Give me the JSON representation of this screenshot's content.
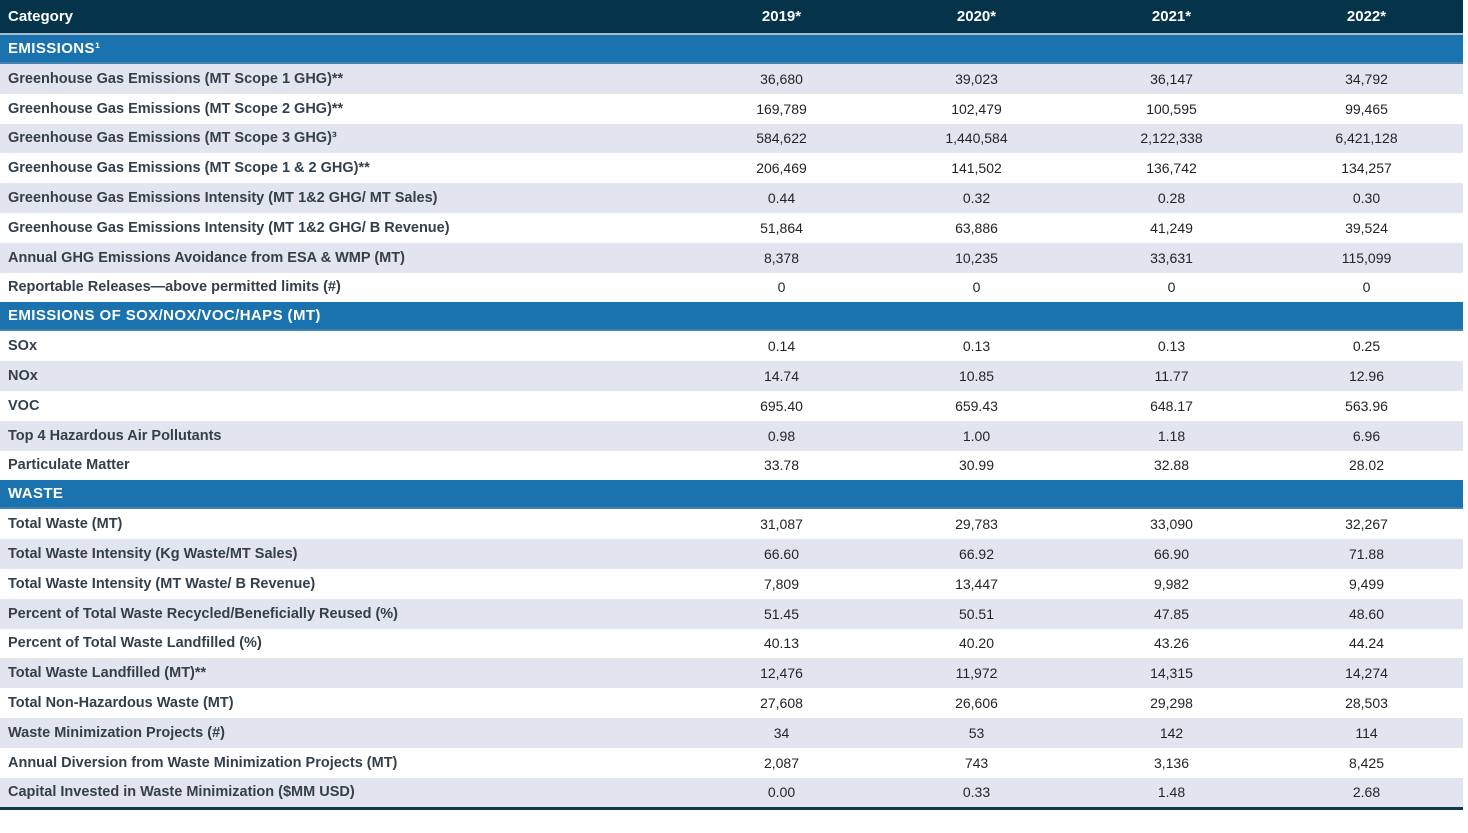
{
  "colors": {
    "header_bg": "#05344a",
    "section_bg": "#1a73ae",
    "stripe_bg": "#e2e5ef",
    "header_divider": "#aabccb",
    "section_edge": "#4483ad",
    "bottom_border": "#0c3b51",
    "label_color": "#333f4a",
    "value_color": "#212428"
  },
  "table": {
    "columns": [
      "Category",
      "2019*",
      "2020*",
      "2021*",
      "2022*"
    ],
    "sections": [
      {
        "title": "EMISSIONS¹",
        "rows": [
          {
            "label": "Greenhouse Gas Emissions (MT Scope 1 GHG)**",
            "values": [
              "36,680",
              "39,023",
              "36,147",
              "34,792"
            ]
          },
          {
            "label": "Greenhouse Gas Emissions (MT Scope 2 GHG)**",
            "values": [
              "169,789",
              "102,479",
              "100,595",
              "99,465"
            ]
          },
          {
            "label": "Greenhouse Gas Emissions (MT Scope 3 GHG)³",
            "values": [
              "584,622",
              "1,440,584",
              "2,122,338",
              "6,421,128"
            ]
          },
          {
            "label": "Greenhouse Gas Emissions (MT Scope 1 & 2 GHG)**",
            "values": [
              "206,469",
              "141,502",
              "136,742",
              "134,257"
            ]
          },
          {
            "label": "Greenhouse Gas Emissions Intensity (MT 1&2 GHG/ MT Sales)",
            "values": [
              "0.44",
              "0.32",
              "0.28",
              "0.30"
            ]
          },
          {
            "label": "Greenhouse Gas Emissions Intensity (MT 1&2 GHG/ B Revenue)",
            "values": [
              "51,864",
              "63,886",
              "41,249",
              "39,524"
            ]
          },
          {
            "label": "Annual GHG Emissions Avoidance from ESA & WMP (MT)",
            "values": [
              "8,378",
              "10,235",
              "33,631",
              "115,099"
            ]
          },
          {
            "label": "Reportable Releases—above permitted limits (#)",
            "values": [
              "0",
              "0",
              "0",
              "0"
            ]
          }
        ]
      },
      {
        "title": "EMISSIONS OF SOX/NOX/VOC/HAPS (MT)",
        "rows": [
          {
            "label": "SOx",
            "values": [
              "0.14",
              "0.13",
              "0.13",
              "0.25"
            ]
          },
          {
            "label": "NOx",
            "values": [
              "14.74",
              "10.85",
              "11.77",
              "12.96"
            ]
          },
          {
            "label": "VOC",
            "values": [
              "695.40",
              "659.43",
              "648.17",
              "563.96"
            ]
          },
          {
            "label": "Top 4 Hazardous Air Pollutants",
            "values": [
              "0.98",
              "1.00",
              "1.18",
              "6.96"
            ]
          },
          {
            "label": "Particulate Matter",
            "values": [
              "33.78",
              "30.99",
              "32.88",
              "28.02"
            ]
          }
        ]
      },
      {
        "title": "WASTE",
        "rows": [
          {
            "label": "Total Waste (MT)",
            "values": [
              "31,087",
              "29,783",
              "33,090",
              "32,267"
            ]
          },
          {
            "label": "Total Waste Intensity (Kg Waste/MT Sales)",
            "values": [
              "66.60",
              "66.92",
              "66.90",
              "71.88"
            ]
          },
          {
            "label": "Total Waste Intensity (MT Waste/ B Revenue)",
            "values": [
              "7,809",
              "13,447",
              "9,982",
              "9,499"
            ]
          },
          {
            "label": "Percent of Total Waste Recycled/Beneficially Reused (%)",
            "values": [
              "51.45",
              "50.51",
              "47.85",
              "48.60"
            ]
          },
          {
            "label": "Percent of Total Waste Landfilled (%)",
            "values": [
              "40.13",
              "40.20",
              "43.26",
              "44.24"
            ]
          },
          {
            "label": "Total Waste Landfilled (MT)**",
            "values": [
              "12,476",
              "11,972",
              "14,315",
              "14,274"
            ]
          },
          {
            "label": "Total Non-Hazardous Waste (MT)",
            "values": [
              "27,608",
              "26,606",
              "29,298",
              "28,503"
            ]
          },
          {
            "label": "Waste Minimization Projects (#)",
            "values": [
              "34",
              "53",
              "142",
              "114"
            ]
          },
          {
            "label": "Annual Diversion from Waste Minimization Projects (MT)",
            "values": [
              "2,087",
              "743",
              "3,136",
              "8,425"
            ]
          },
          {
            "label": "Capital Invested in Waste Minimization ($MM USD)",
            "values": [
              "0.00",
              "0.33",
              "1.48",
              "2.68"
            ]
          }
        ]
      }
    ]
  }
}
